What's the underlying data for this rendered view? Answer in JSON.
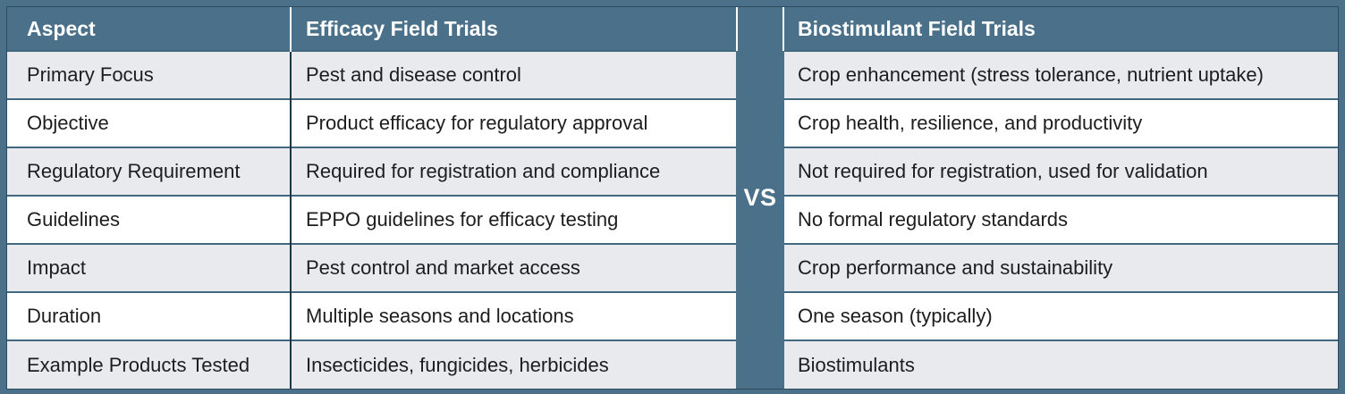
{
  "table": {
    "headers": {
      "aspect": "Aspect",
      "efficacy": "Efficacy Field Trials",
      "biostimulant": "Biostimulant Field Trials"
    },
    "divider_label": "VS",
    "rows": [
      {
        "aspect": "Primary Focus",
        "efficacy": "Pest and disease control",
        "biostimulant": "Crop enhancement (stress tolerance, nutrient uptake)"
      },
      {
        "aspect": "Objective",
        "efficacy": "Product efficacy for regulatory approval",
        "biostimulant": "Crop health, resilience, and productivity"
      },
      {
        "aspect": "Regulatory Requirement",
        "efficacy": "Required for registration and compliance",
        "biostimulant": "Not required for registration, used for validation"
      },
      {
        "aspect": "Guidelines",
        "efficacy": "EPPO guidelines for efficacy testing",
        "biostimulant": "No formal regulatory standards"
      },
      {
        "aspect": "Impact",
        "efficacy": "Pest control and market access",
        "biostimulant": "Crop performance and sustainability"
      },
      {
        "aspect": "Duration",
        "efficacy": "Multiple seasons and locations",
        "biostimulant": "One season (typically)"
      },
      {
        "aspect": "Example Products Tested",
        "efficacy": "Insecticides, fungicides, herbicides",
        "biostimulant": "Biostimulants"
      }
    ]
  },
  "colors": {
    "teal": "#4a708a",
    "frame_line": "#2c4c5c",
    "row_alt": "#e8eaee",
    "row_white": "#ffffff",
    "header_text": "#ffffff",
    "body_text": "#1d1d1f",
    "divider_dark": "#1d3744",
    "separator": "#42687f"
  }
}
